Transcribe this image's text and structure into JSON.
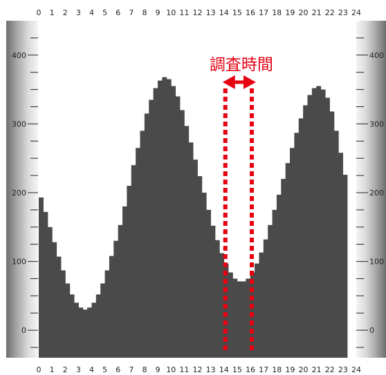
{
  "chart_data": {
    "type": "bar",
    "x_ticks": [
      "0",
      "1",
      "2",
      "3",
      "4",
      "5",
      "6",
      "7",
      "8",
      "9",
      "10",
      "11",
      "12",
      "13",
      "14",
      "15",
      "16",
      "17",
      "18",
      "19",
      "20",
      "21",
      "22",
      "23",
      "24"
    ],
    "y_ticks": [
      "0",
      "100",
      "200",
      "300",
      "400"
    ],
    "ylim": [
      -40,
      450
    ],
    "xlim": [
      0,
      24
    ],
    "bar_step_hours": 0.333,
    "values": [
      193,
      172,
      150,
      128,
      107,
      87,
      68,
      52,
      40,
      33,
      30,
      33,
      40,
      52,
      68,
      87,
      108,
      130,
      153,
      180,
      210,
      240,
      265,
      290,
      315,
      335,
      352,
      363,
      368,
      365,
      355,
      340,
      320,
      297,
      273,
      248,
      224,
      200,
      175,
      152,
      131,
      112,
      97,
      84,
      75,
      71,
      71,
      75,
      84,
      97,
      113,
      132,
      153,
      175,
      197,
      220,
      243,
      265,
      287,
      308,
      327,
      342,
      352,
      355,
      350,
      338,
      318,
      290,
      258,
      226
    ],
    "annotation": {
      "text": "調査時間",
      "range": [
        14,
        16
      ]
    },
    "colors": {
      "bar": "#4a4a4a",
      "annotation": "#e60012"
    }
  }
}
